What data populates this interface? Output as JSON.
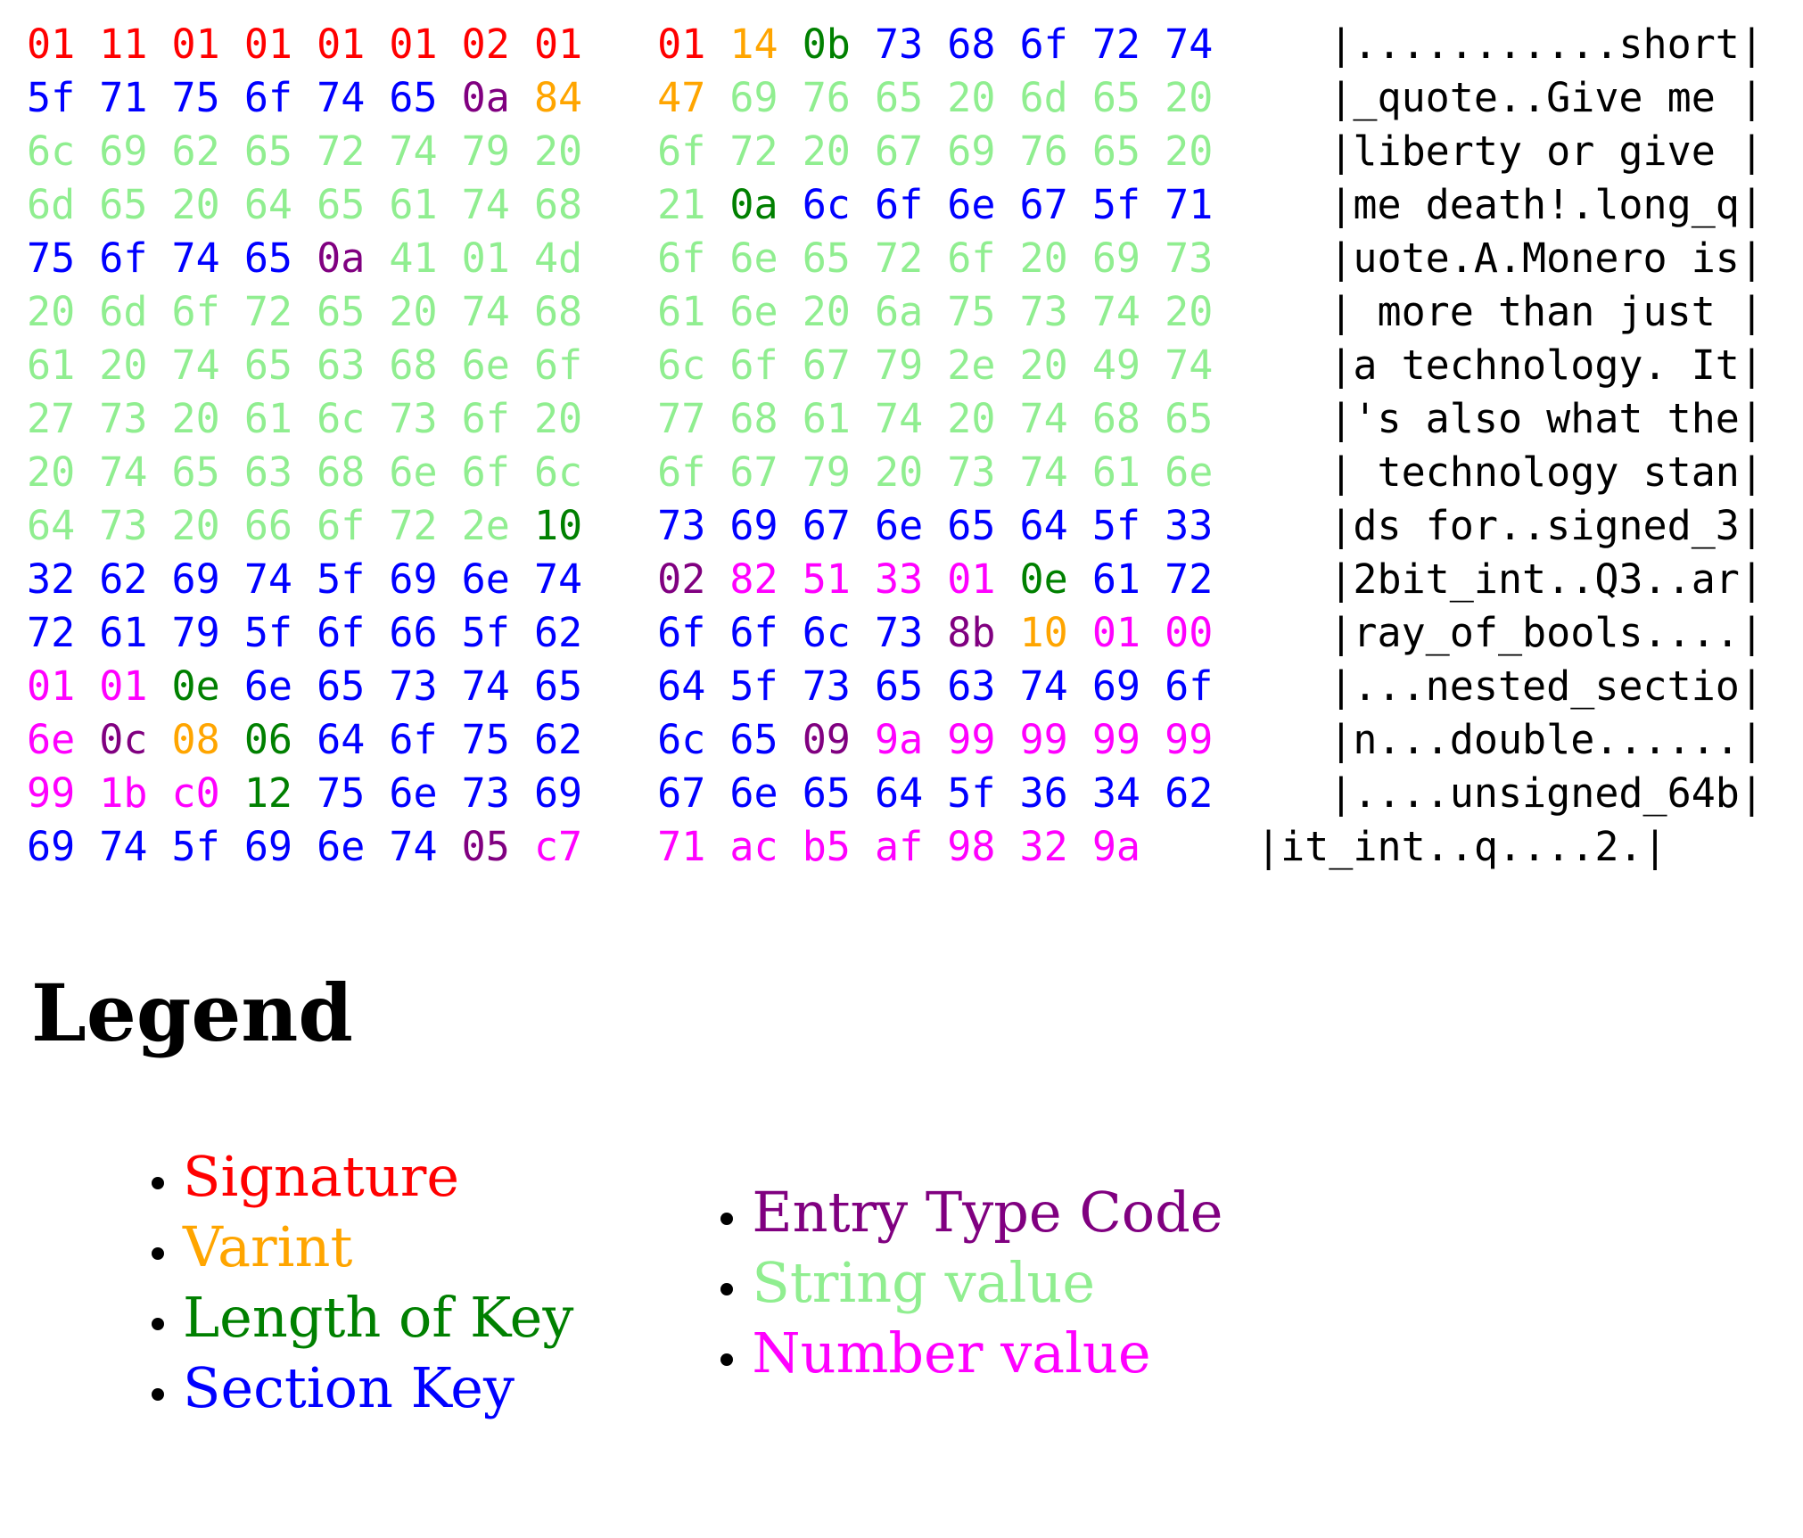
{
  "hexdump": {
    "palette": {
      "sig": "#ff0000",
      "var": "#ffa500",
      "len": "#008000",
      "key": "#0000ff",
      "type": "#800080",
      "str": "#90ee90",
      "num": "#ff00ff",
      "ascii": "#000000"
    },
    "rows": [
      {
        "left": [
          "01:sig",
          "11:sig",
          "01:sig",
          "01:sig",
          "01:sig",
          "01:sig",
          "02:sig",
          "01:sig"
        ],
        "right": [
          "01:sig",
          "14:var",
          "0b:len",
          "73:key",
          "68:key",
          "6f:key",
          "72:key",
          "74:key"
        ],
        "ascii": "|...........short|"
      },
      {
        "left": [
          "5f:key",
          "71:key",
          "75:key",
          "6f:key",
          "74:key",
          "65:key",
          "0a:type",
          "84:var"
        ],
        "right": [
          "47:var",
          "69:str",
          "76:str",
          "65:str",
          "20:str",
          "6d:str",
          "65:str",
          "20:str"
        ],
        "ascii": "|_quote..Give me |"
      },
      {
        "left": [
          "6c:str",
          "69:str",
          "62:str",
          "65:str",
          "72:str",
          "74:str",
          "79:str",
          "20:str"
        ],
        "right": [
          "6f:str",
          "72:str",
          "20:str",
          "67:str",
          "69:str",
          "76:str",
          "65:str",
          "20:str"
        ],
        "ascii": "|liberty or give |"
      },
      {
        "left": [
          "6d:str",
          "65:str",
          "20:str",
          "64:str",
          "65:str",
          "61:str",
          "74:str",
          "68:str"
        ],
        "right": [
          "21:str",
          "0a:len",
          "6c:key",
          "6f:key",
          "6e:key",
          "67:key",
          "5f:key",
          "71:key"
        ],
        "ascii": "|me death!.long_q|"
      },
      {
        "left": [
          "75:key",
          "6f:key",
          "74:key",
          "65:key",
          "0a:type",
          "41:str",
          "01:str",
          "4d:str"
        ],
        "right": [
          "6f:str",
          "6e:str",
          "65:str",
          "72:str",
          "6f:str",
          "20:str",
          "69:str",
          "73:str"
        ],
        "ascii": "|uote.A.Monero is|"
      },
      {
        "left": [
          "20:str",
          "6d:str",
          "6f:str",
          "72:str",
          "65:str",
          "20:str",
          "74:str",
          "68:str"
        ],
        "right": [
          "61:str",
          "6e:str",
          "20:str",
          "6a:str",
          "75:str",
          "73:str",
          "74:str",
          "20:str"
        ],
        "ascii": "| more than just |"
      },
      {
        "left": [
          "61:str",
          "20:str",
          "74:str",
          "65:str",
          "63:str",
          "68:str",
          "6e:str",
          "6f:str"
        ],
        "right": [
          "6c:str",
          "6f:str",
          "67:str",
          "79:str",
          "2e:str",
          "20:str",
          "49:str",
          "74:str"
        ],
        "ascii": "|a technology. It|"
      },
      {
        "left": [
          "27:str",
          "73:str",
          "20:str",
          "61:str",
          "6c:str",
          "73:str",
          "6f:str",
          "20:str"
        ],
        "right": [
          "77:str",
          "68:str",
          "61:str",
          "74:str",
          "20:str",
          "74:str",
          "68:str",
          "65:str"
        ],
        "ascii": "|'s also what the|"
      },
      {
        "left": [
          "20:str",
          "74:str",
          "65:str",
          "63:str",
          "68:str",
          "6e:str",
          "6f:str",
          "6c:str"
        ],
        "right": [
          "6f:str",
          "67:str",
          "79:str",
          "20:str",
          "73:str",
          "74:str",
          "61:str",
          "6e:str"
        ],
        "ascii": "| technology stan|"
      },
      {
        "left": [
          "64:str",
          "73:str",
          "20:str",
          "66:str",
          "6f:str",
          "72:str",
          "2e:str",
          "10:len"
        ],
        "right": [
          "73:key",
          "69:key",
          "67:key",
          "6e:key",
          "65:key",
          "64:key",
          "5f:key",
          "33:key"
        ],
        "ascii": "|ds for..signed_3|"
      },
      {
        "left": [
          "32:key",
          "62:key",
          "69:key",
          "74:key",
          "5f:key",
          "69:key",
          "6e:key",
          "74:key"
        ],
        "right": [
          "02:type",
          "82:num",
          "51:num",
          "33:num",
          "01:num",
          "0e:len",
          "61:key",
          "72:key"
        ],
        "ascii": "|2bit_int..Q3..ar|"
      },
      {
        "left": [
          "72:key",
          "61:key",
          "79:key",
          "5f:key",
          "6f:key",
          "66:key",
          "5f:key",
          "62:key"
        ],
        "right": [
          "6f:key",
          "6f:key",
          "6c:key",
          "73:key",
          "8b:type",
          "10:var",
          "01:num",
          "00:num"
        ],
        "ascii": "|ray_of_bools....|"
      },
      {
        "left": [
          "01:num",
          "01:num",
          "0e:len",
          "6e:key",
          "65:key",
          "73:key",
          "74:key",
          "65:key"
        ],
        "right": [
          "64:key",
          "5f:key",
          "73:key",
          "65:key",
          "63:key",
          "74:key",
          "69:key",
          "6f:key"
        ],
        "ascii": "|...nested_sectio|"
      },
      {
        "left": [
          "6e:num",
          "0c:type",
          "08:var",
          "06:len",
          "64:key",
          "6f:key",
          "75:key",
          "62:key"
        ],
        "right": [
          "6c:key",
          "65:key",
          "09:type",
          "9a:num",
          "99:num",
          "99:num",
          "99:num",
          "99:num"
        ],
        "ascii": "|n...double......|"
      },
      {
        "left": [
          "99:num",
          "1b:num",
          "c0:num",
          "12:len",
          "75:key",
          "6e:key",
          "73:key",
          "69:key"
        ],
        "right": [
          "67:key",
          "6e:key",
          "65:key",
          "64:key",
          "5f:key",
          "36:key",
          "34:key",
          "62:key"
        ],
        "ascii": "|....unsigned_64b|"
      },
      {
        "left": [
          "69:key",
          "74:key",
          "5f:key",
          "69:key",
          "6e:key",
          "74:key",
          "05:type",
          "c7:num"
        ],
        "right": [
          "71:num",
          "ac:num",
          "b5:num",
          "af:num",
          "98:num",
          "32:num",
          "9a:num"
        ],
        "ascii": "|it_int..q....2.|"
      }
    ]
  },
  "legend": {
    "title": "Legend",
    "columns": [
      {
        "items": [
          {
            "label": "Signature",
            "color": "#ff0000"
          },
          {
            "label": "Varint",
            "color": "#ffa500"
          },
          {
            "label": "Length of Key",
            "color": "#008000"
          },
          {
            "label": "Section Key",
            "color": "#0000ff"
          }
        ]
      },
      {
        "items": [
          {
            "label": "Entry Type Code",
            "color": "#800080"
          },
          {
            "label": "String value",
            "color": "#90ee90"
          },
          {
            "label": "Number value",
            "color": "#ff00ff"
          }
        ]
      }
    ]
  }
}
